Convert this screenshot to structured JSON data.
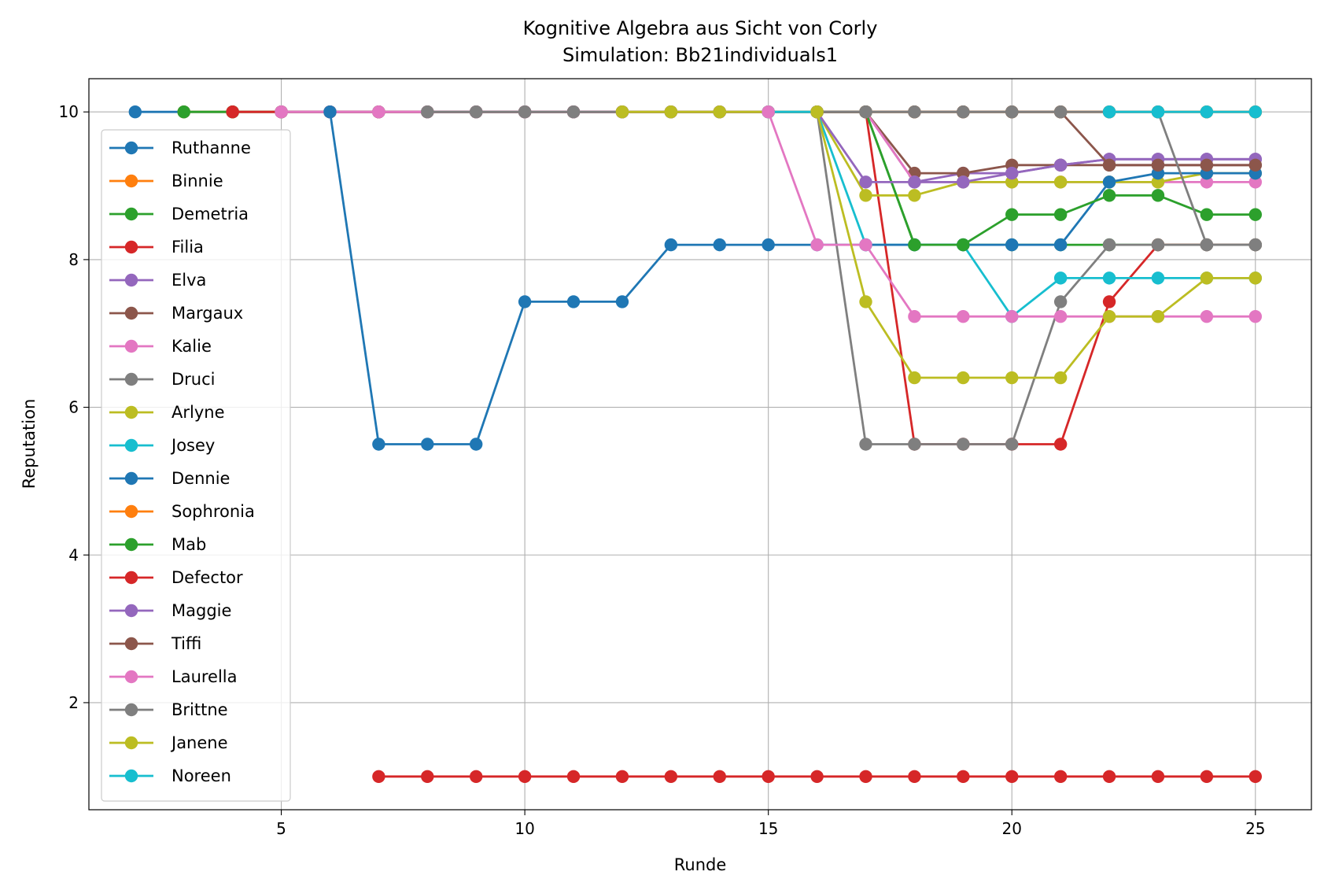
{
  "chart_data": {
    "type": "line",
    "title": "Kognitive Algebra aus Sicht von Corly",
    "subtitle": "Simulation: Bb21individuals1",
    "xlabel": "Runde",
    "ylabel": "Reputation",
    "xlim": [
      1.05,
      26.15
    ],
    "ylim": [
      0.55,
      10.45
    ],
    "xticks": [
      5,
      10,
      15,
      20,
      25
    ],
    "yticks": [
      2,
      4,
      6,
      8,
      10
    ],
    "grid": true,
    "legend_position": "center-left",
    "series": [
      {
        "name": "Ruthanne",
        "color": "#1f77b4",
        "x": [
          2,
          3,
          4,
          5,
          6,
          7,
          8,
          9,
          10,
          11,
          12,
          13,
          14,
          15,
          16,
          17,
          18,
          19,
          20,
          21,
          22,
          23,
          24,
          25
        ],
        "y": [
          10,
          10,
          10,
          10,
          10,
          10,
          10,
          10,
          10,
          10,
          10,
          10,
          10,
          10,
          10,
          10,
          10,
          10,
          10,
          10,
          10,
          10,
          10,
          10
        ]
      },
      {
        "name": "Binnie",
        "color": "#ff7f0e",
        "x": [
          3,
          4,
          5,
          6,
          7,
          8,
          9,
          10,
          11,
          12,
          13,
          14,
          15,
          16,
          17,
          18,
          19,
          20,
          21,
          22,
          23,
          24,
          25
        ],
        "y": [
          10,
          10,
          10,
          10,
          10,
          10,
          10,
          10,
          10,
          10,
          10,
          10,
          10,
          10,
          10,
          10,
          10,
          10,
          10,
          10,
          10,
          10,
          10
        ]
      },
      {
        "name": "Demetria",
        "color": "#2ca02c",
        "x": [
          3,
          4,
          5,
          6,
          7,
          8,
          9,
          10,
          11,
          12,
          13,
          14,
          15,
          16,
          17,
          18,
          19,
          20,
          21,
          22,
          23,
          24,
          25
        ],
        "y": [
          10,
          10,
          10,
          10,
          10,
          10,
          10,
          10,
          10,
          10,
          10,
          10,
          10,
          10,
          10,
          8.2,
          8.2,
          8.2,
          8.2,
          8.2,
          8.2,
          8.2,
          8.2
        ]
      },
      {
        "name": "Filia",
        "color": "#d62728",
        "x": [
          4,
          5,
          6,
          7,
          8,
          9,
          10,
          11,
          12,
          13,
          14,
          15,
          16,
          17,
          18,
          19,
          20,
          21,
          22,
          23,
          24,
          25
        ],
        "y": [
          10,
          10,
          10,
          10,
          10,
          10,
          10,
          10,
          10,
          10,
          10,
          10,
          10,
          10,
          5.5,
          5.5,
          5.5,
          5.5,
          7.43,
          8.2,
          8.2,
          8.2
        ]
      },
      {
        "name": "Elva",
        "color": "#9467bd",
        "x": [
          5,
          6,
          7,
          8,
          9,
          10,
          11,
          12,
          13,
          14,
          15,
          16,
          17,
          18,
          19,
          20,
          21,
          22,
          23,
          24,
          25
        ],
        "y": [
          10,
          10,
          10,
          10,
          10,
          10,
          10,
          10,
          10,
          10,
          10,
          10,
          10,
          9.05,
          9.17,
          9.17,
          9.28,
          9.36,
          9.36,
          9.36,
          9.36
        ]
      },
      {
        "name": "Margaux",
        "color": "#8c564b",
        "x": [
          5,
          6,
          7,
          8,
          9,
          10,
          11,
          12,
          13,
          14,
          15,
          16,
          17,
          18,
          19,
          20,
          21,
          22,
          23,
          24,
          25
        ],
        "y": [
          10,
          10,
          10,
          10,
          10,
          10,
          10,
          10,
          10,
          10,
          10,
          10,
          10,
          9.17,
          9.17,
          9.28,
          9.28,
          9.28,
          9.28,
          9.28,
          9.28
        ]
      },
      {
        "name": "Kalie",
        "color": "#e377c2",
        "x": [
          5,
          6,
          7,
          8,
          9,
          10,
          11,
          12,
          13,
          14,
          15,
          16,
          17,
          18,
          19,
          20,
          21,
          22,
          23,
          24,
          25
        ],
        "y": [
          10,
          10,
          10,
          10,
          10,
          10,
          10,
          10,
          10,
          10,
          10,
          10,
          10,
          9.05,
          9.05,
          9.05,
          9.05,
          9.05,
          9.05,
          9.05,
          9.05
        ]
      },
      {
        "name": "Druci",
        "color": "#7f7f7f",
        "x": [
          8,
          9,
          10,
          11,
          12,
          13,
          14,
          15,
          16,
          17,
          18,
          19,
          20,
          21,
          22,
          23,
          24,
          25
        ],
        "y": [
          10,
          10,
          10,
          10,
          10,
          10,
          10,
          10,
          10,
          5.5,
          5.5,
          5.5,
          5.5,
          7.43,
          8.2,
          8.2,
          8.2,
          8.2
        ]
      },
      {
        "name": "Arlyne",
        "color": "#bcbd22",
        "x": [
          12,
          13,
          14,
          15,
          16,
          17,
          18,
          19,
          20,
          21,
          22,
          23,
          24,
          25
        ],
        "y": [
          10,
          10,
          10,
          10,
          10,
          8.87,
          8.87,
          9.05,
          9.05,
          9.05,
          9.05,
          9.05,
          9.17,
          9.17
        ]
      },
      {
        "name": "Josey",
        "color": "#17becf",
        "x": [
          15,
          16,
          17,
          18,
          19,
          20,
          21,
          22,
          23,
          24,
          25
        ],
        "y": [
          10,
          10,
          8.2,
          8.2,
          8.2,
          7.23,
          7.75,
          7.75,
          7.75,
          7.75,
          7.75
        ]
      },
      {
        "name": "Dennie",
        "color": "#1f77b4",
        "x": [
          6,
          7,
          8,
          9,
          10,
          11,
          12,
          13,
          14,
          15,
          16,
          17,
          18,
          19,
          20,
          21,
          22,
          23,
          24,
          25
        ],
        "y": [
          10,
          5.5,
          5.5,
          5.5,
          7.43,
          7.43,
          7.43,
          8.2,
          8.2,
          8.2,
          8.2,
          8.2,
          8.2,
          8.2,
          8.2,
          8.2,
          9.05,
          9.17,
          9.17,
          9.17
        ]
      },
      {
        "name": "Sophronia",
        "color": "#ff7f0e",
        "x": [
          16,
          17,
          18,
          19,
          20,
          21,
          22,
          23,
          24,
          25
        ],
        "y": [
          10,
          10,
          10,
          10,
          10,
          10,
          10,
          10,
          10,
          10
        ]
      },
      {
        "name": "Mab",
        "color": "#2ca02c",
        "x": [
          16,
          17,
          18,
          19,
          20,
          21,
          22,
          23,
          24,
          25
        ],
        "y": [
          10,
          10,
          8.2,
          8.2,
          8.61,
          8.61,
          8.87,
          8.87,
          8.61,
          8.61
        ]
      },
      {
        "name": "Defector",
        "color": "#d62728",
        "x": [
          7,
          8,
          9,
          10,
          11,
          12,
          13,
          14,
          15,
          16,
          17,
          18,
          19,
          20,
          21,
          22,
          23,
          24,
          25
        ],
        "y": [
          1,
          1,
          1,
          1,
          1,
          1,
          1,
          1,
          1,
          1,
          1,
          1,
          1,
          1,
          1,
          1,
          1,
          1,
          1
        ]
      },
      {
        "name": "Maggie",
        "color": "#9467bd",
        "x": [
          16,
          17,
          18,
          19,
          20,
          21,
          22,
          23,
          24,
          25
        ],
        "y": [
          10,
          9.05,
          9.05,
          9.05,
          9.17,
          9.28,
          9.36,
          9.36,
          9.36,
          9.36
        ]
      },
      {
        "name": "Tiffi",
        "color": "#8c564b",
        "x": [
          16,
          17,
          18,
          19,
          20,
          21,
          22,
          23,
          24,
          25
        ],
        "y": [
          10,
          10,
          10,
          10,
          10,
          10,
          9.28,
          9.28,
          9.28,
          9.28
        ]
      },
      {
        "name": "Laurella",
        "color": "#e377c2",
        "x": [
          15,
          16,
          17,
          18,
          19,
          20,
          21,
          22,
          23,
          24,
          25
        ],
        "y": [
          10,
          8.2,
          8.2,
          7.23,
          7.23,
          7.23,
          7.23,
          7.23,
          7.23,
          7.23,
          7.23
        ]
      },
      {
        "name": "Brittne",
        "color": "#7f7f7f",
        "x": [
          16,
          17,
          18,
          19,
          20,
          21,
          22,
          23,
          24,
          25
        ],
        "y": [
          10,
          10,
          10,
          10,
          10,
          10,
          10,
          10,
          8.2,
          8.2
        ]
      },
      {
        "name": "Janene",
        "color": "#bcbd22",
        "x": [
          16,
          17,
          18,
          19,
          20,
          21,
          22,
          23,
          24,
          25
        ],
        "y": [
          10,
          7.43,
          6.4,
          6.4,
          6.4,
          6.4,
          7.23,
          7.23,
          7.75,
          7.75
        ]
      },
      {
        "name": "Noreen",
        "color": "#17becf",
        "x": [
          22,
          23,
          24,
          25
        ],
        "y": [
          10,
          10,
          10,
          10
        ]
      }
    ]
  }
}
